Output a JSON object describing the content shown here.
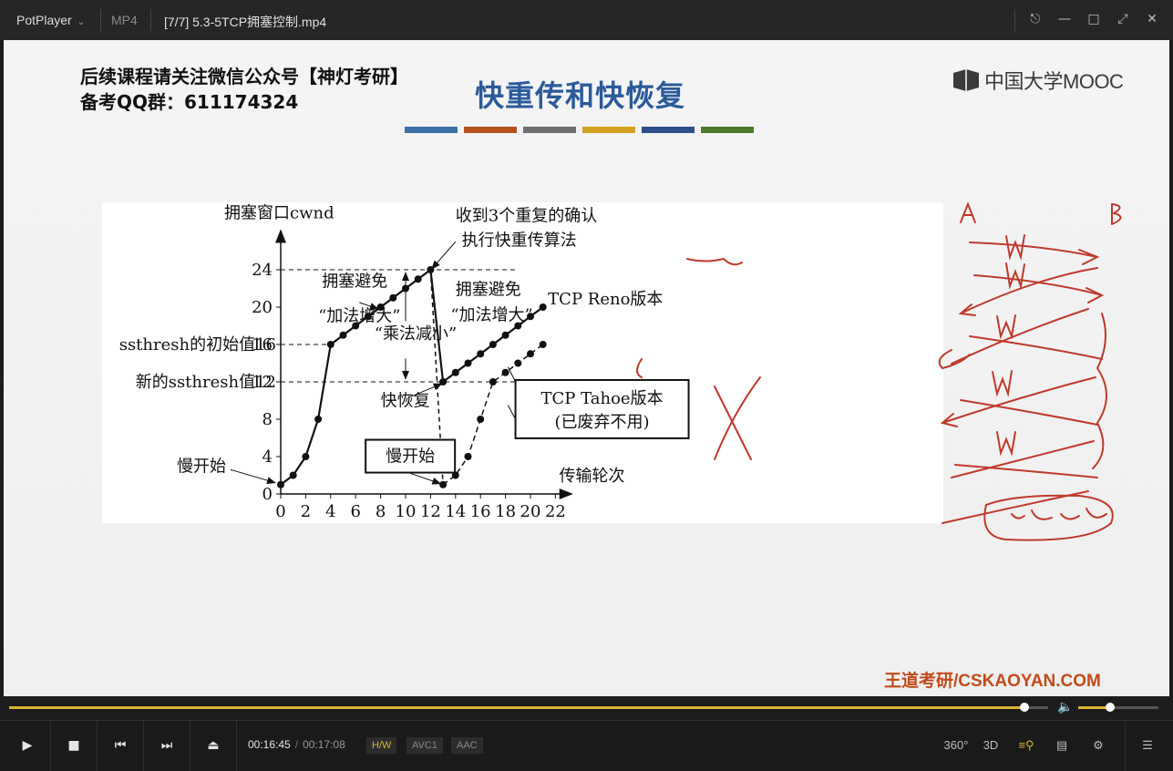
{
  "app": {
    "name": "PotPlayer",
    "format": "MP4",
    "title": "[7/7] 5.3-5TCP拥塞控制.mp4"
  },
  "window_buttons": [
    "pin-icon",
    "minimize-icon",
    "maximize-icon",
    "fullscreen-icon",
    "close-icon"
  ],
  "slide": {
    "promo_line1": "后续课程请关注微信公众号【神灯考研】",
    "promo_line2": "备考QQ群：611174324",
    "title": "快重传和快恢复",
    "color_bars": [
      "#3a6fa8",
      "#b5501e",
      "#6e6e6e",
      "#d4a020",
      "#2c4f8a",
      "#4a7a2a"
    ],
    "mooc_logo": "中国大学MOOC",
    "watermark": "王道考研/CSKAOYAN.COM"
  },
  "chart_data": {
    "type": "line",
    "ylabel": "拥塞窗口cwnd",
    "xlabel": "传输轮次",
    "x_ticks": [
      0,
      2,
      4,
      6,
      8,
      10,
      12,
      14,
      16,
      18,
      20,
      22
    ],
    "y_ticks": [
      0,
      4,
      8,
      12,
      16,
      20,
      24
    ],
    "xlim": [
      0,
      23
    ],
    "ylim": [
      0,
      27
    ],
    "series": [
      {
        "name": "TCP Reno版本",
        "x": [
          0,
          1,
          2,
          3,
          4,
          5,
          6,
          7,
          8,
          9,
          10,
          11,
          12,
          13,
          14,
          15,
          16,
          17,
          18,
          19,
          20,
          21
        ],
        "y": [
          1,
          2,
          4,
          8,
          16,
          17,
          18,
          19,
          20,
          21,
          22,
          23,
          24,
          12,
          13,
          14,
          15,
          16,
          17,
          18,
          19,
          20
        ]
      },
      {
        "name": "TCP Tahoe版本",
        "x": [
          13,
          14,
          15,
          16,
          17,
          18,
          19,
          20,
          21
        ],
        "y": [
          1,
          2,
          4,
          8,
          12,
          13,
          14,
          15,
          16
        ]
      }
    ],
    "labels": {
      "ssthresh_initial": "ssthresh的初始值16",
      "ssthresh_new": "新的ssthresh值12",
      "slow_start_left": "慢开始",
      "slow_start_box": "慢开始",
      "ca_left_1": "拥塞避免",
      "ca_left_2": "“加法增大”",
      "ca_right_1": "拥塞避免",
      "ca_right_2": "“加法增大”",
      "md": "“乘法减小”",
      "fast_recovery": "快恢复",
      "three_dup_1": "收到3个重复的确认",
      "three_dup_2": "执行快重传算法",
      "reno": "TCP Reno版本",
      "tahoe_1": "TCP Tahoe版本",
      "tahoe_2": "(已废弃不用)"
    }
  },
  "player": {
    "progress": 0.977,
    "volume": 0.4,
    "time_current": "00:16:45",
    "time_total": "00:17:08",
    "tags": [
      "H/W",
      "AVC1",
      "AAC"
    ],
    "right_icons": [
      "360°",
      "3D"
    ]
  },
  "colors": {
    "accent": "#d8b430",
    "annotation": "#c0392b"
  }
}
